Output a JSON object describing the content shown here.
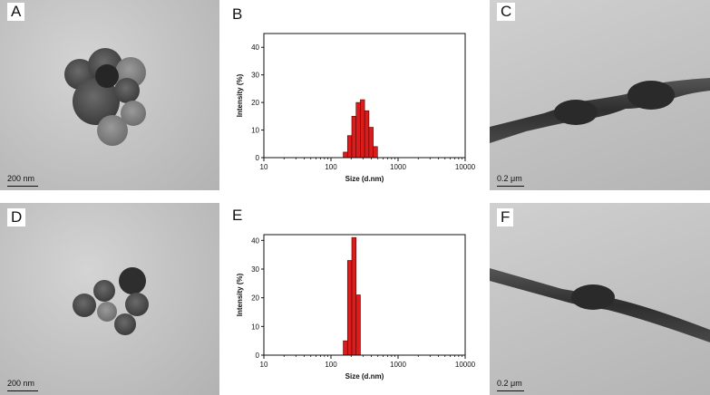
{
  "panels": {
    "A": {
      "label": "A",
      "scale": "200 nm"
    },
    "B": {
      "label": "B"
    },
    "C": {
      "label": "C",
      "scale": "0.2 μm"
    },
    "D": {
      "label": "D",
      "scale": "200 nm"
    },
    "E": {
      "label": "E"
    },
    "F": {
      "label": "F",
      "scale": "0.2 μm"
    }
  },
  "chart_data": [
    {
      "type": "bar",
      "panel": "B",
      "xlabel": "Size (d.nm)",
      "ylabel": "Intensity (%)",
      "xscale": "log",
      "xlim": [
        10,
        10000
      ],
      "ylim": [
        0,
        45
      ],
      "xticks": [
        "10",
        "100",
        "1000",
        "10000"
      ],
      "yticks": [
        "0",
        "10",
        "20",
        "30",
        "40"
      ],
      "bar_color": "#d91c1c",
      "x": [
        164,
        190,
        220,
        255,
        295,
        342,
        396,
        459
      ],
      "values": [
        2,
        8,
        15,
        20,
        21,
        17,
        11,
        4
      ]
    },
    {
      "type": "bar",
      "panel": "E",
      "xlabel": "Size (d.nm)",
      "ylabel": "Intensity (%)",
      "xscale": "log",
      "xlim": [
        10,
        10000
      ],
      "ylim": [
        0,
        42
      ],
      "xticks": [
        "10",
        "100",
        "1000",
        "10000"
      ],
      "yticks": [
        "0",
        "10",
        "20",
        "30",
        "40"
      ],
      "bar_color": "#d91c1c",
      "x": [
        164,
        190,
        220,
        255
      ],
      "values": [
        5,
        33,
        41,
        21
      ]
    }
  ]
}
